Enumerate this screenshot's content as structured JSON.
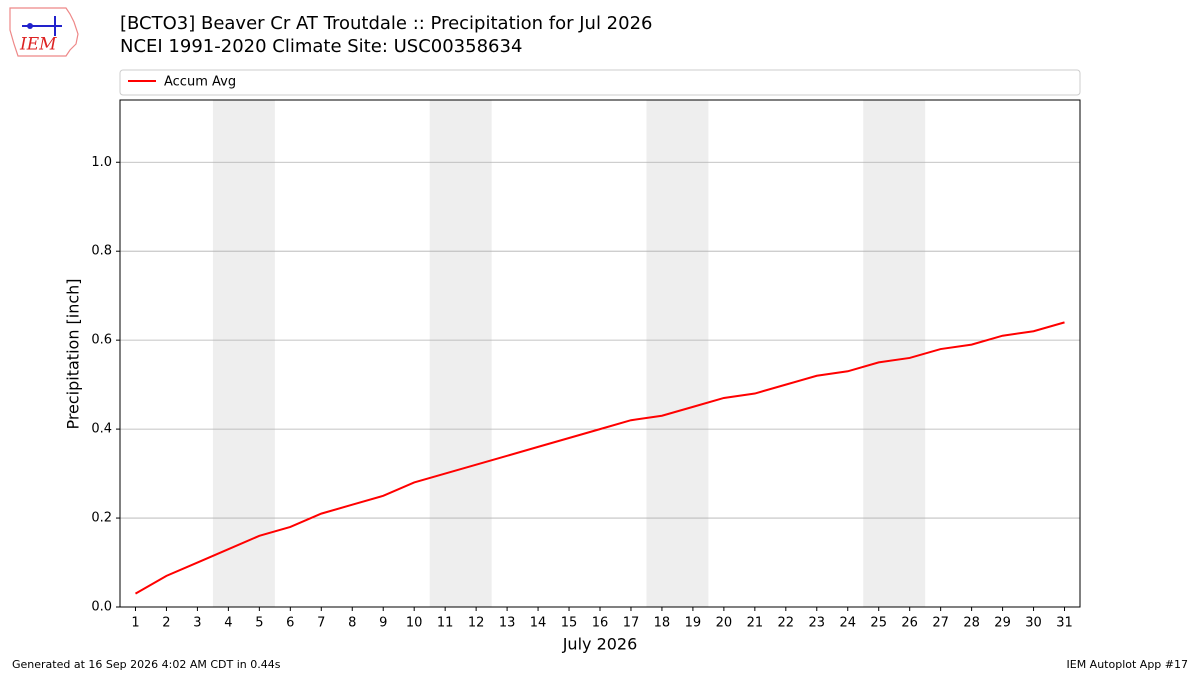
{
  "logo_text": "IEM",
  "chart_data": {
    "type": "line",
    "title": "[BCTO3] Beaver Cr  AT Troutdale :: Precipitation for Jul 2026",
    "subtitle": "NCEI 1991-2020 Climate Site: USC00358634",
    "xlabel": "July 2026",
    "ylabel": "Precipitation [inch]",
    "x": [
      1,
      2,
      3,
      4,
      5,
      6,
      7,
      8,
      9,
      10,
      11,
      12,
      13,
      14,
      15,
      16,
      17,
      18,
      19,
      20,
      21,
      22,
      23,
      24,
      25,
      26,
      27,
      28,
      29,
      30,
      31
    ],
    "series": [
      {
        "name": "Accum Avg",
        "color": "#ff0000",
        "values": [
          0.03,
          0.07,
          0.1,
          0.13,
          0.16,
          0.18,
          0.21,
          0.23,
          0.25,
          0.28,
          0.3,
          0.32,
          0.34,
          0.36,
          0.38,
          0.4,
          0.42,
          0.43,
          0.45,
          0.47,
          0.48,
          0.5,
          0.52,
          0.53,
          0.55,
          0.56,
          0.58,
          0.59,
          0.61,
          0.62,
          0.64
        ]
      }
    ],
    "weekend_bands": [
      [
        3.5,
        5.5
      ],
      [
        10.5,
        12.5
      ],
      [
        17.5,
        19.5
      ],
      [
        24.5,
        26.5
      ]
    ],
    "band_color": "#eeeeee",
    "xlim": [
      0.5,
      31.5
    ],
    "ylim": [
      0,
      1.14
    ],
    "xticks": [
      1,
      2,
      3,
      4,
      5,
      6,
      7,
      8,
      9,
      10,
      11,
      12,
      13,
      14,
      15,
      16,
      17,
      18,
      19,
      20,
      21,
      22,
      23,
      24,
      25,
      26,
      27,
      28,
      29,
      30,
      31
    ],
    "yticks": [
      {
        "value": 0,
        "label": "0.0"
      },
      0.2,
      0.4,
      0.6,
      0.8,
      {
        "value": 1,
        "label": "1.0"
      }
    ],
    "grid": "y",
    "legend": "top"
  },
  "footer": {
    "left": "Generated at 16 Sep 2026 4:02 AM CDT in 0.44s",
    "right": "IEM Autoplot App #17"
  }
}
